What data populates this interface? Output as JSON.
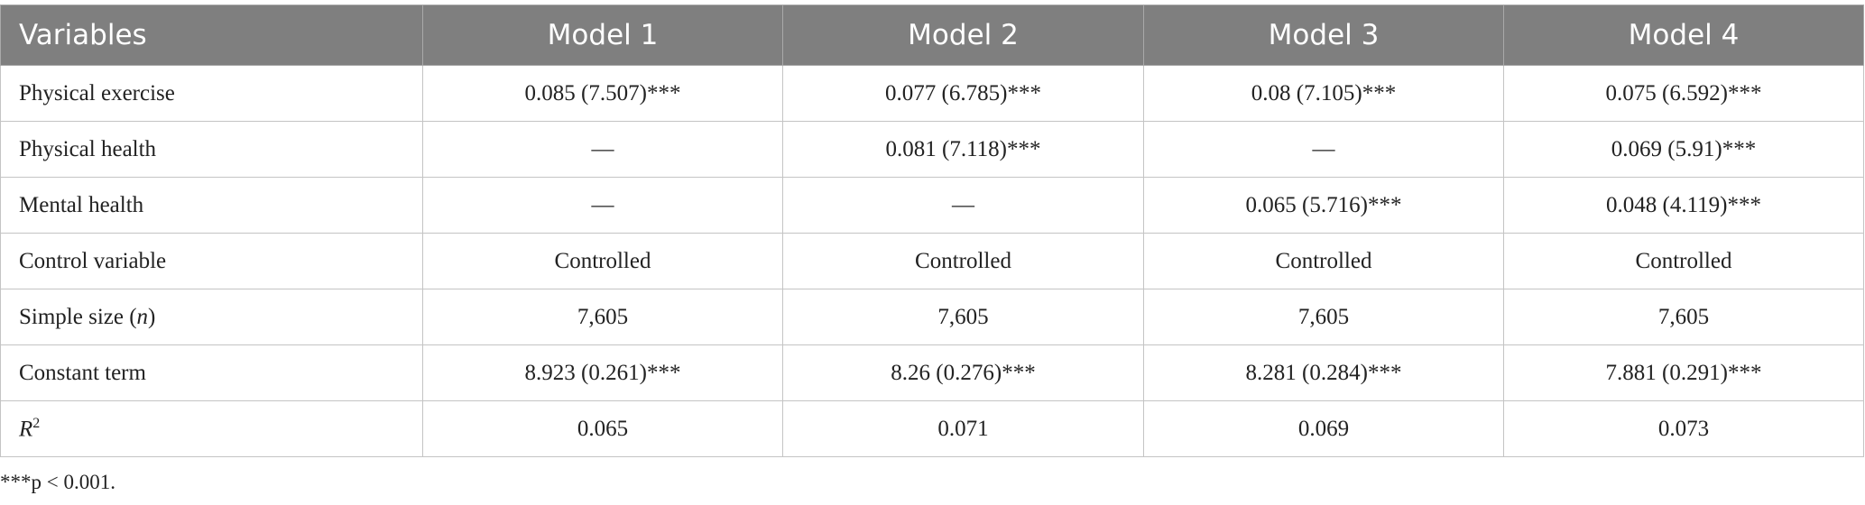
{
  "table": {
    "header": [
      "Variables",
      "Model 1",
      "Model 2",
      "Model 3",
      "Model 4"
    ],
    "rows": [
      [
        "Physical exercise",
        "0.085 (7.507)***",
        "0.077 (6.785)***",
        "0.08 (7.105)***",
        "0.075 (6.592)***"
      ],
      [
        "Physical health",
        "—",
        "0.081 (7.118)***",
        "—",
        "0.069 (5.91)***"
      ],
      [
        "Mental health",
        "—",
        "—",
        "0.065 (5.716)***",
        "0.048 (4.119)***"
      ],
      [
        "Control variable",
        "Controlled",
        "Controlled",
        "Controlled",
        "Controlled"
      ],
      [
        [
          {
            "text": "Simple size ("
          },
          {
            "text": "n",
            "style": "italic"
          },
          {
            "text": ")"
          }
        ],
        "7,605",
        "7,605",
        "7,605",
        "7,605"
      ],
      [
        "Constant term",
        "8.923 (0.261)***",
        "8.26 (0.276)***",
        "8.281 (0.284)***",
        "7.881 (0.291)***"
      ],
      [
        [
          {
            "text": "R",
            "style": "italic"
          },
          {
            "text": "2",
            "style": "sup"
          }
        ],
        "0.065",
        "0.071",
        "0.069",
        "0.073"
      ]
    ],
    "footnote": "***p < 0.001."
  }
}
